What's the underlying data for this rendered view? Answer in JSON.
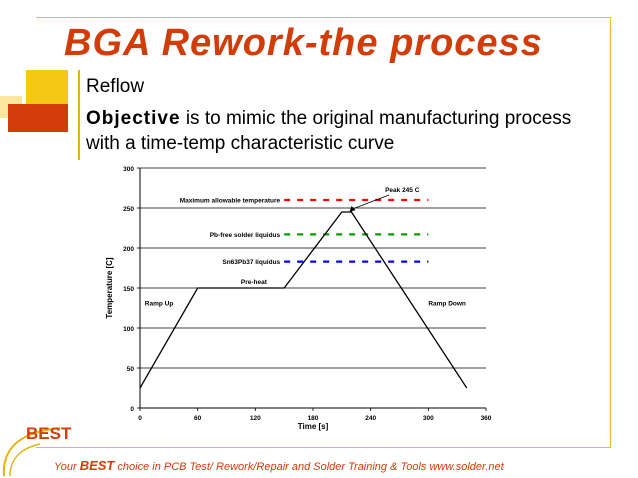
{
  "slide": {
    "title": "BGA Rework-the process",
    "bullet1": "Reflow",
    "objective_keyword": "Objective",
    "objective_text": "is to mimic the original manufacturing process with a time-temp characteristic curve",
    "logo": "BEST",
    "footer_pre": "Your ",
    "footer_brand": "BEST",
    "footer_post": " choice in PCB Test/ Rework/Repair and Solder Training & Tools www.solder.net"
  },
  "colors": {
    "accent": "#d23c08",
    "frame": "#e8c020",
    "max_line": "#ff0000",
    "pbfree_line": "#00a000",
    "snpb_line": "#0000ff"
  },
  "chart_data": {
    "type": "line",
    "xlabel": "Time [s]",
    "ylabel": "Temperature [C]",
    "xlim": [
      0,
      360
    ],
    "ylim": [
      0,
      300
    ],
    "xticks": [
      0,
      60,
      120,
      180,
      240,
      300,
      360
    ],
    "yticks": [
      0,
      50,
      100,
      150,
      200,
      250,
      300
    ],
    "grid": "horizontal",
    "series": [
      {
        "x": [
          0,
          60,
          150,
          210,
          220,
          340
        ],
        "y": [
          25,
          150,
          150,
          245,
          245,
          25
        ]
      }
    ],
    "reference_lines": [
      {
        "label": "Maximum allowable temperature",
        "y": 260,
        "x_start": 150,
        "x_end": 300,
        "color": "#ff0000"
      },
      {
        "label": "Pb-free solder liquidus",
        "y": 217,
        "x_start": 150,
        "x_end": 300,
        "color": "#00a000"
      },
      {
        "label": "Sn63Pb37 liquidus",
        "y": 183,
        "x_start": 150,
        "x_end": 300,
        "color": "#0000ff"
      }
    ],
    "annotations": [
      {
        "text": "Peak 245 C",
        "x": 255,
        "y": 270,
        "arrow_to": [
          218,
          245
        ]
      },
      {
        "text": "Pre-heat",
        "x": 105,
        "y": 155
      },
      {
        "text": "Ramp Up",
        "x": 5,
        "y": 128
      },
      {
        "text": "Ramp Down",
        "x": 300,
        "y": 128
      }
    ]
  }
}
